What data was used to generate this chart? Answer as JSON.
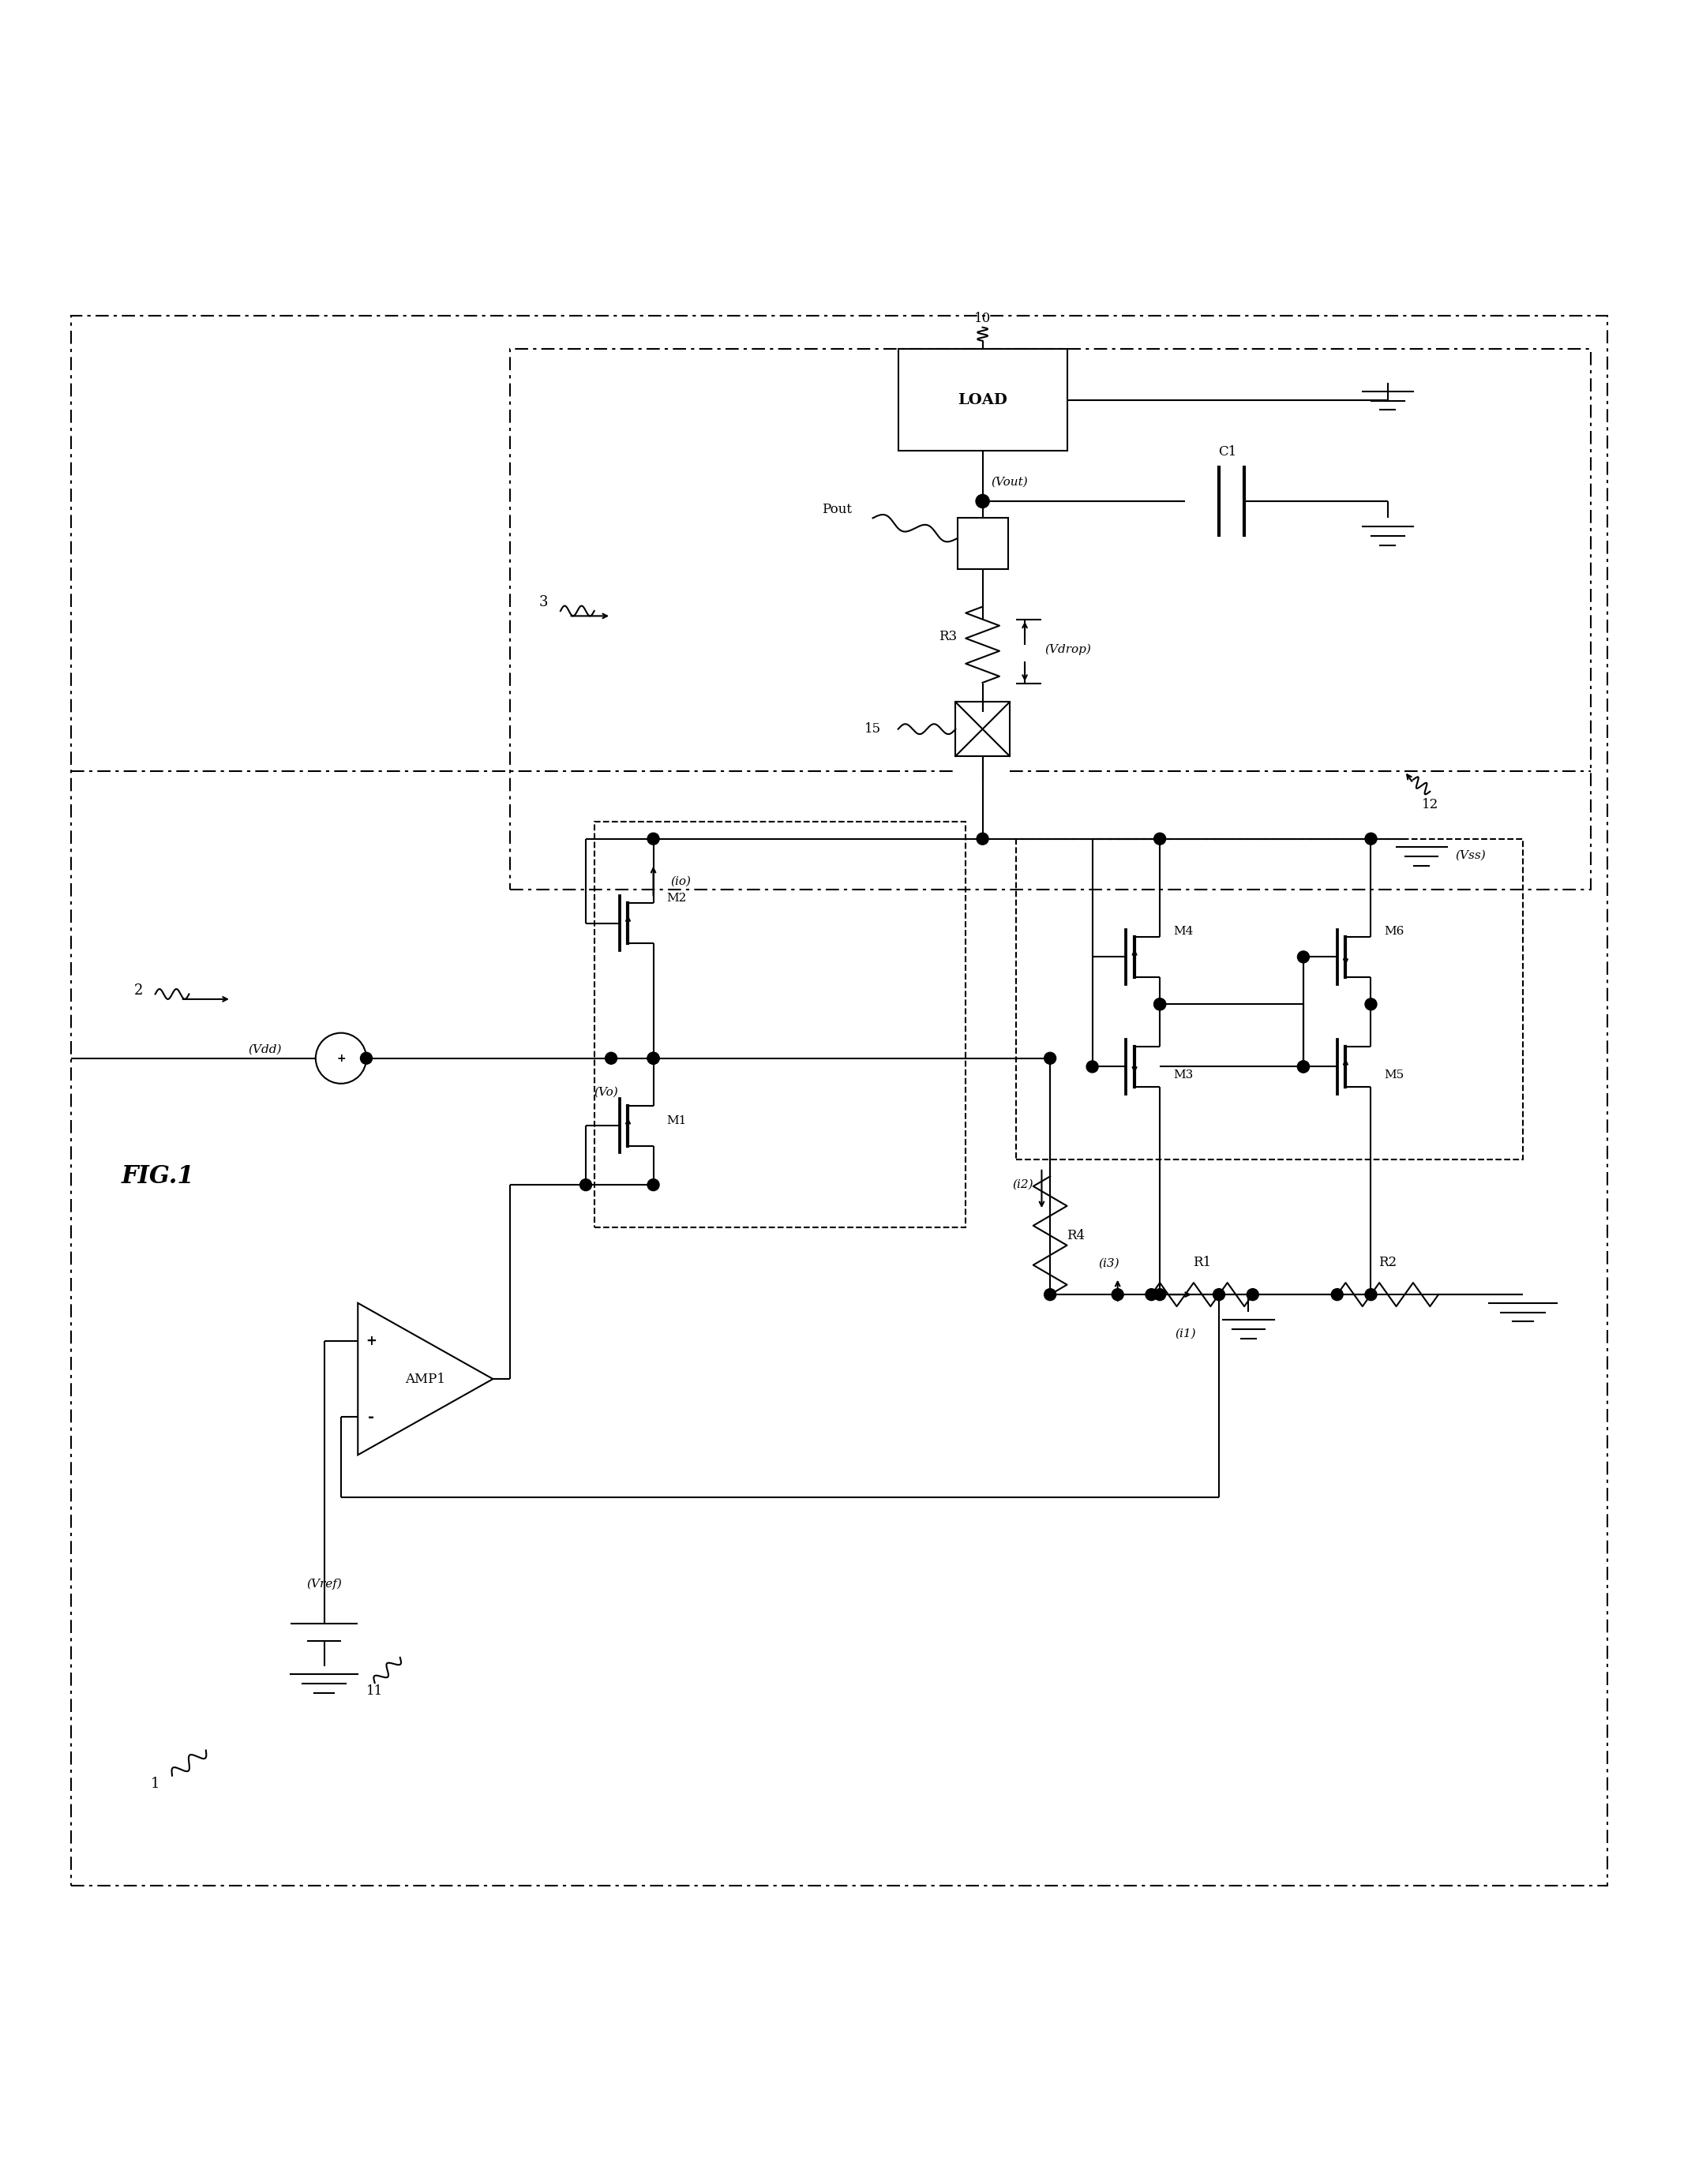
{
  "title": "FIG.1",
  "background_color": "#ffffff",
  "line_color": "#000000",
  "fig_width": 21.47,
  "fig_height": 27.67,
  "labels": {
    "fig_label": "FIG.1",
    "fig_num": "1",
    "block2_num": "2",
    "block3_num": "3",
    "block12_num": "12",
    "load_num": "10",
    "vref_num": "11",
    "node15": "15",
    "load_text": "LOAD",
    "vout_text": "(Vout)",
    "vdrop_text": "(Vdrop)",
    "pout_text": "Pout",
    "c1_text": "C1",
    "r3_text": "R3",
    "r4_text": "R4",
    "r1_text": "R1",
    "r2_text": "R2",
    "vdd_text": "(Vdd)",
    "vo_text": "(Vo)",
    "io_text": "(io)",
    "vss_text": "(Vss)",
    "vref_text": "(Vref)",
    "m1_text": "M1",
    "m2_text": "M2",
    "m3_text": "M3",
    "m4_text": "M4",
    "m5_text": "M5",
    "m6_text": "M6",
    "amp1_text": "AMP1",
    "i1_text": "(i1)",
    "i2_text": "(i2)",
    "i3_text": "(i3)"
  }
}
